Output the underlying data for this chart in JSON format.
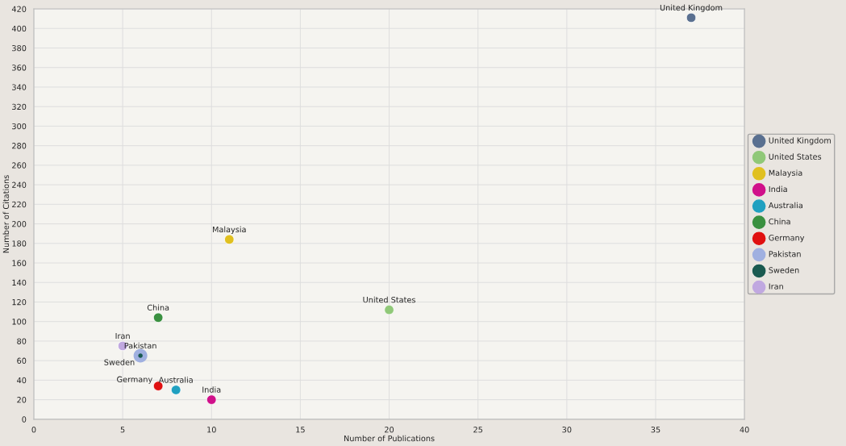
{
  "chart_data": {
    "type": "scatter",
    "xlabel": "Number of Publications",
    "ylabel": "Number of Citations",
    "xlim": [
      0,
      40
    ],
    "xticks": [
      0,
      5,
      10,
      15,
      20,
      25,
      30,
      35,
      40
    ],
    "ylim": [
      0,
      420
    ],
    "yticks": [
      0,
      20,
      40,
      60,
      80,
      100,
      120,
      140,
      160,
      180,
      200,
      220,
      240,
      260,
      280,
      300,
      320,
      340,
      360,
      380,
      400,
      420
    ],
    "grid": true,
    "legend": "right",
    "marker": "circle",
    "series": [
      {
        "name": "United Kingdom",
        "color": "#5a7090",
        "x": [
          37
        ],
        "values": [
          411
        ]
      },
      {
        "name": "United States",
        "color": "#90c878",
        "x": [
          20
        ],
        "values": [
          112
        ]
      },
      {
        "name": "Malaysia",
        "color": "#e0c020",
        "x": [
          11
        ],
        "values": [
          184
        ]
      },
      {
        "name": "India",
        "color": "#d0108a",
        "x": [
          10
        ],
        "values": [
          20
        ]
      },
      {
        "name": "Australia",
        "color": "#20a0c0",
        "x": [
          8
        ],
        "values": [
          30
        ]
      },
      {
        "name": "China",
        "color": "#3a9040",
        "x": [
          7
        ],
        "values": [
          104
        ]
      },
      {
        "name": "Germany",
        "color": "#e01010",
        "x": [
          7
        ],
        "values": [
          34
        ]
      },
      {
        "name": "Pakistan",
        "color": "#a0b0e0",
        "x": [
          6
        ],
        "values": [
          65
        ]
      },
      {
        "name": "Sweden",
        "color": "#1a5a50",
        "x": [
          6
        ],
        "values": [
          65
        ]
      },
      {
        "name": "Iran",
        "color": "#c0a8e0",
        "x": [
          5
        ],
        "values": [
          75
        ]
      }
    ]
  }
}
